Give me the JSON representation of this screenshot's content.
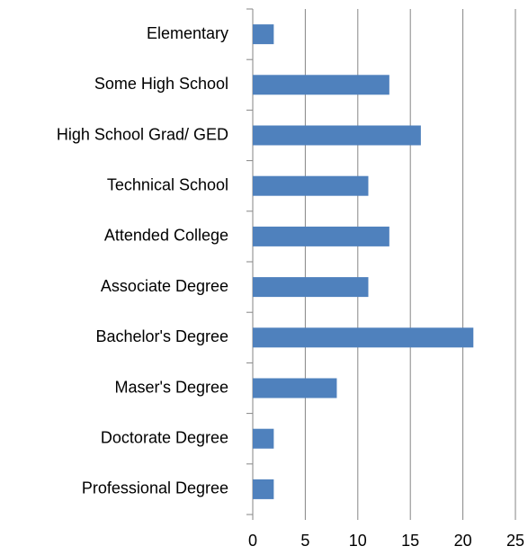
{
  "chart_data": {
    "type": "bar",
    "orientation": "horizontal",
    "categories": [
      "Elementary",
      "Some High School",
      "High School Grad/ GED",
      "Technical School",
      "Attended College",
      "Associate Degree",
      "Bachelor's Degree",
      "Maser's Degree",
      "Doctorate Degree",
      "Professional Degree"
    ],
    "values": [
      2,
      13,
      16,
      11,
      13,
      11,
      21,
      8,
      2,
      2
    ],
    "color": "#4f81bd",
    "xlim": [
      0,
      25
    ],
    "xticks": [
      0,
      5,
      10,
      15,
      20,
      25
    ],
    "grid": true
  }
}
